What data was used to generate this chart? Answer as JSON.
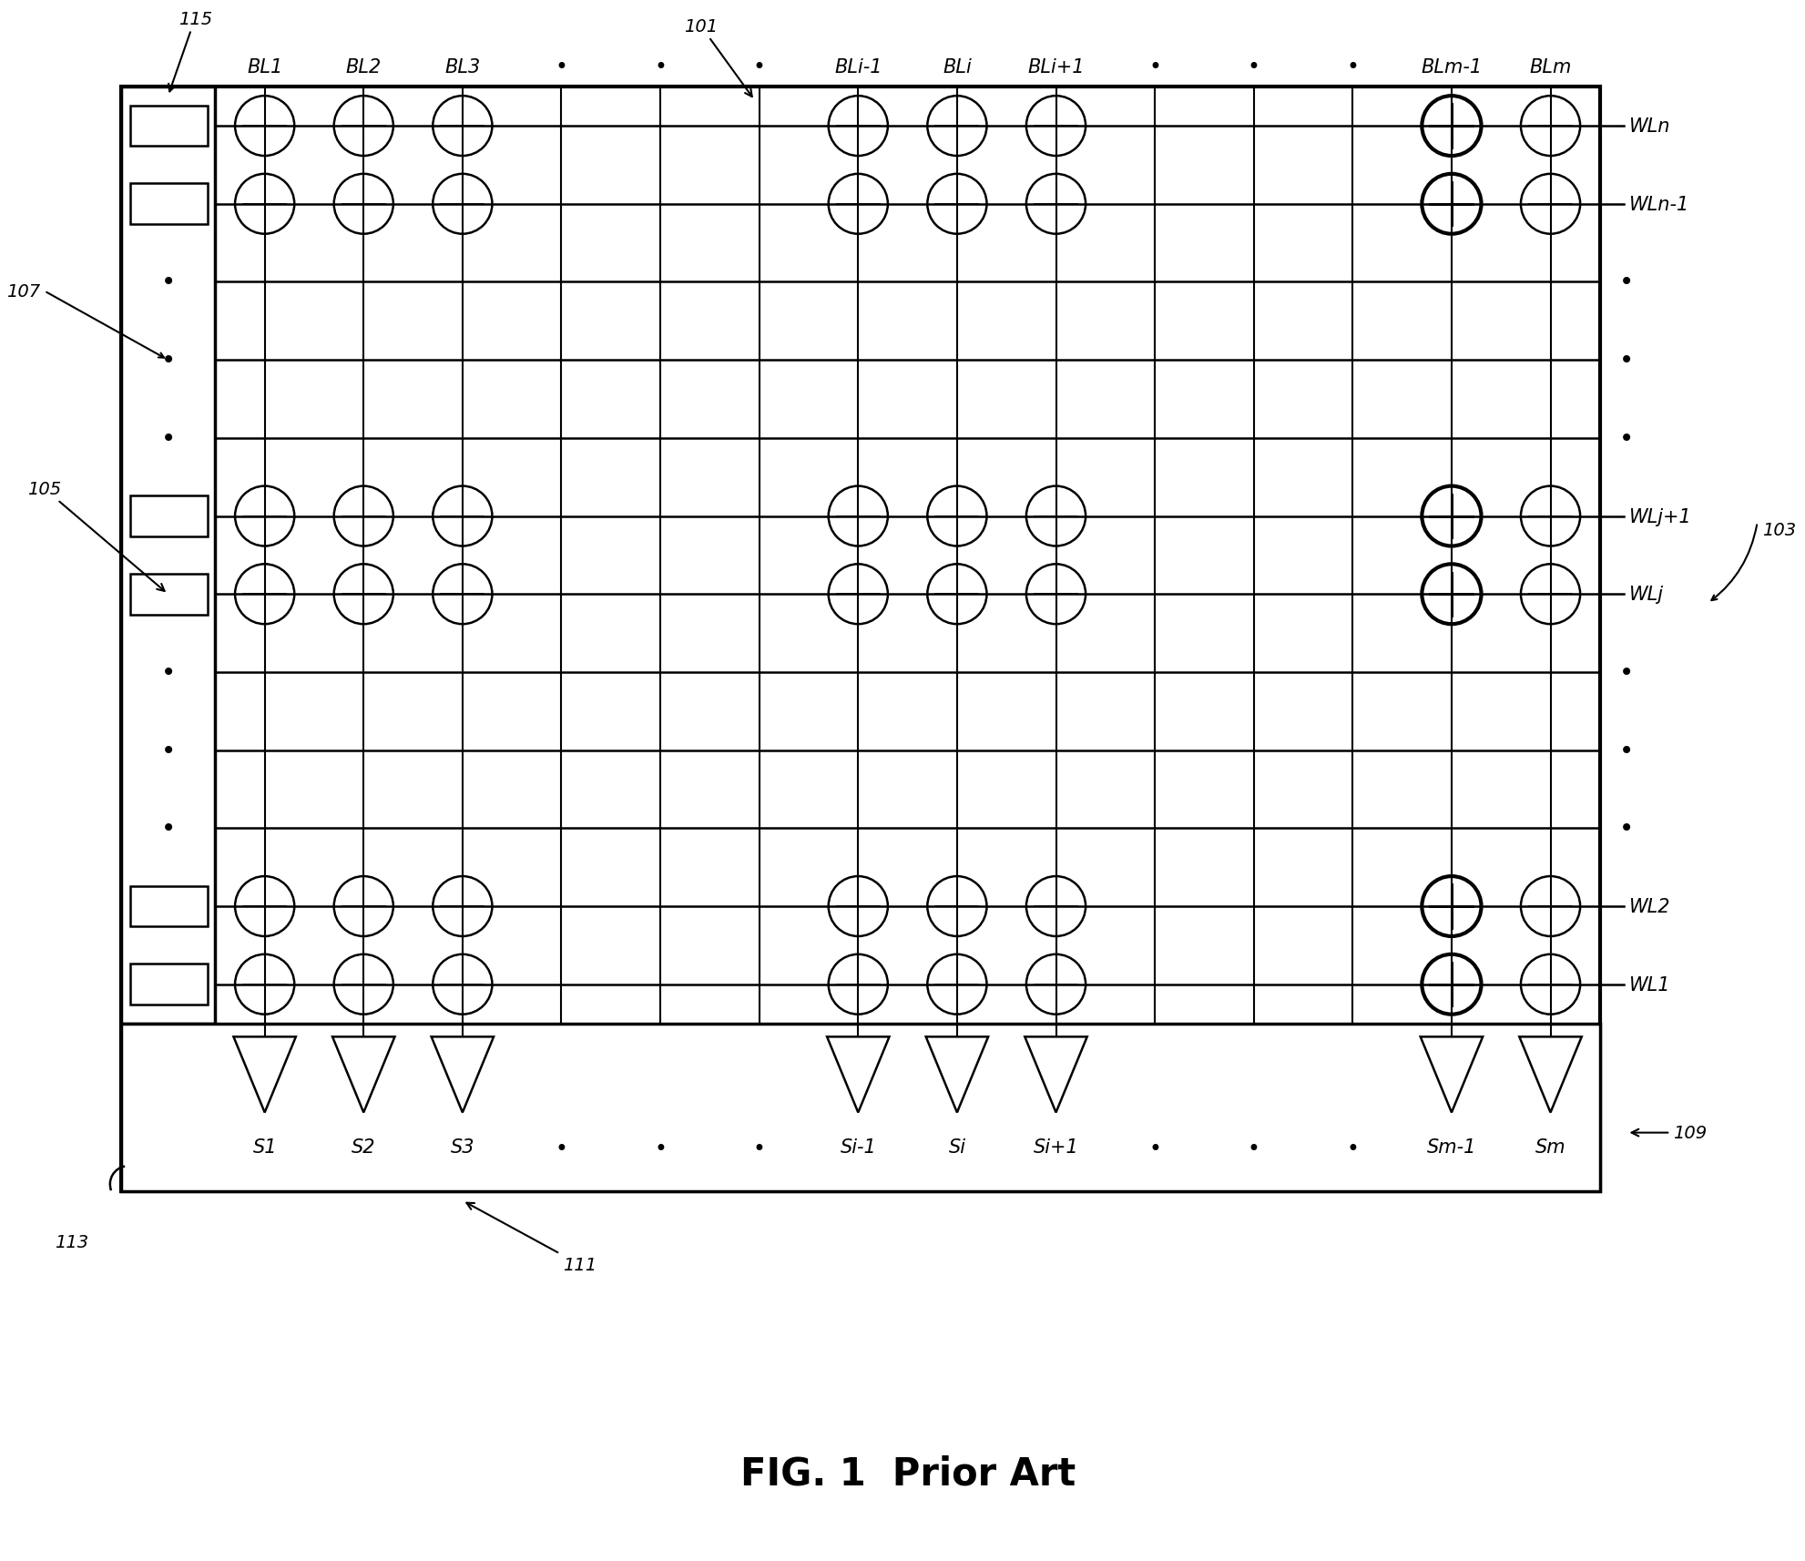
{
  "fig_width": 19.82,
  "fig_height": 17.15,
  "bg_color": "#ffffff",
  "title": "FIG. 1  Prior Art",
  "title_fontsize": 30,
  "bl_labels": [
    "BL1",
    "BL2",
    "BL3",
    "•",
    "•",
    "•",
    "BLi-1",
    "BLi",
    "BLi+1",
    "•",
    "•",
    "•",
    "BLm-1",
    "BLm"
  ],
  "wl_labels_right": [
    "WL1",
    "WL2",
    "WL2",
    "WLj",
    "WLj+1",
    "WLn-1",
    "WLn"
  ],
  "s_labels": [
    "S1",
    "S2",
    "S3",
    "•",
    "•",
    "•",
    "Si-1",
    "Si",
    "Si+1",
    "•",
    "•",
    "•",
    "Sm-1",
    "Sm"
  ],
  "ref_101": "101",
  "ref_103": "103",
  "ref_105": "105",
  "ref_107": "107",
  "ref_109": "109",
  "ref_111": "111",
  "ref_113": "113",
  "ref_115": "115",
  "line_color": "#000000",
  "text_color": "#000000",
  "fontsize_label": 15,
  "fontsize_ref": 14
}
